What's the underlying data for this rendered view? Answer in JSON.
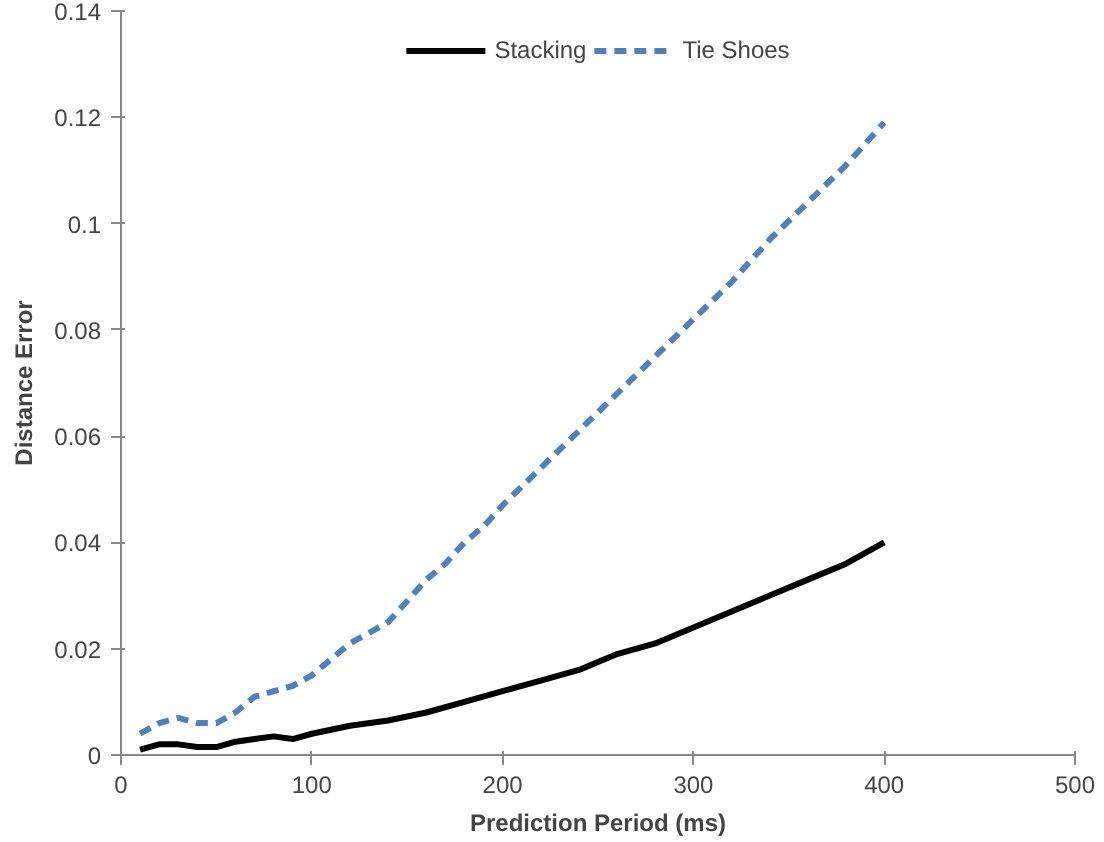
{
  "chart_data": {
    "type": "line",
    "xlabel": "Prediction Period (ms)",
    "ylabel": "Distance Error",
    "xlim": [
      0,
      500
    ],
    "xticks": [
      0,
      100,
      200,
      300,
      400,
      500
    ],
    "ylim": [
      0,
      0.14
    ],
    "yticks": [
      0,
      0.02,
      0.04,
      0.06,
      0.08,
      0.1,
      0.12,
      0.14
    ],
    "grid": false,
    "legend": "top",
    "marker": "none",
    "series": [
      {
        "name": "Stacking",
        "color": "#000000",
        "line_style": "solid",
        "x": [
          10,
          20,
          30,
          40,
          50,
          60,
          70,
          80,
          90,
          100,
          120,
          140,
          160,
          180,
          200,
          220,
          240,
          260,
          280,
          300,
          320,
          340,
          360,
          380,
          400
        ],
        "values": [
          0.001,
          0.002,
          0.002,
          0.0015,
          0.0015,
          0.0025,
          0.003,
          0.0035,
          0.003,
          0.004,
          0.0055,
          0.0065,
          0.008,
          0.01,
          0.012,
          0.014,
          0.016,
          0.019,
          0.021,
          0.024,
          0.027,
          0.03,
          0.033,
          0.036,
          0.04
        ]
      },
      {
        "name": "Tie Shoes",
        "color": "#4f81bd",
        "line_style": "dashed",
        "x": [
          10,
          20,
          30,
          40,
          50,
          60,
          70,
          80,
          90,
          100,
          110,
          120,
          130,
          140,
          150,
          160,
          170,
          180,
          190,
          200,
          220,
          240,
          260,
          280,
          300,
          320,
          340,
          360,
          380,
          400
        ],
        "values": [
          0.004,
          0.006,
          0.007,
          0.006,
          0.006,
          0.008,
          0.011,
          0.012,
          0.013,
          0.015,
          0.018,
          0.021,
          0.023,
          0.025,
          0.029,
          0.033,
          0.036,
          0.04,
          0.043,
          0.047,
          0.054,
          0.061,
          0.068,
          0.075,
          0.082,
          0.089,
          0.097,
          0.104,
          0.111,
          0.119
        ]
      }
    ]
  }
}
